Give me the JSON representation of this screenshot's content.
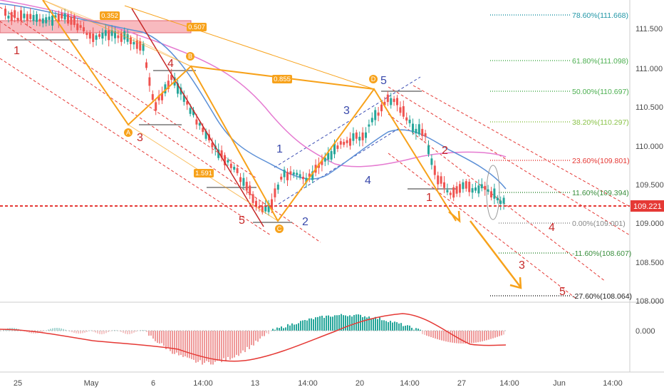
{
  "price_axis": {
    "labels": [
      "111.500",
      "111.000",
      "110.500",
      "110.000",
      "109.500",
      "109.000",
      "108.500",
      "108.000"
    ],
    "current_price": "109.221",
    "indicator_zero": "0.000"
  },
  "time_axis": {
    "labels": [
      "25",
      "May",
      "6",
      "14:00",
      "13",
      "14:00",
      "20",
      "14:00",
      "27",
      "14:00",
      "Jun",
      "14:00"
    ]
  },
  "fib_levels": [
    {
      "label": "78.60%(111.668)",
      "color": "#2196a6"
    },
    {
      "label": "61.80%(111.098)",
      "color": "#4caf50"
    },
    {
      "label": "50.00%(110.697)",
      "color": "#4caf50"
    },
    {
      "label": "38.20%(110.297)",
      "color": "#8bc34a"
    },
    {
      "label": "23.60%(109.801)",
      "color": "#e53935"
    },
    {
      "label": "11.60%(109.394)",
      "color": "#388e3c"
    },
    {
      "label": "0.00%(109.001)",
      "color": "#888888"
    },
    {
      "label": "-11.60%(108.607)",
      "color": "#388e3c"
    },
    {
      "label": "-27.60%(108.064)",
      "color": "#222222"
    }
  ],
  "harmonic": {
    "points": [
      "A",
      "B",
      "C",
      "D"
    ],
    "ratios": [
      "0.352",
      "0.507",
      "0.855",
      "1.591"
    ]
  },
  "waves": {
    "red": [
      "1",
      "3",
      "4",
      "5",
      "1",
      "2",
      "4",
      "3",
      "5"
    ],
    "blue": [
      "1",
      "2",
      "3",
      "4",
      "5"
    ]
  },
  "colors": {
    "up_candle": "#26a69a",
    "down_candle": "#ef5350",
    "orange": "#f7a21b",
    "pink": "#e57ad1",
    "blue_ma": "#5b8fd6",
    "price_line": "#e53935"
  }
}
